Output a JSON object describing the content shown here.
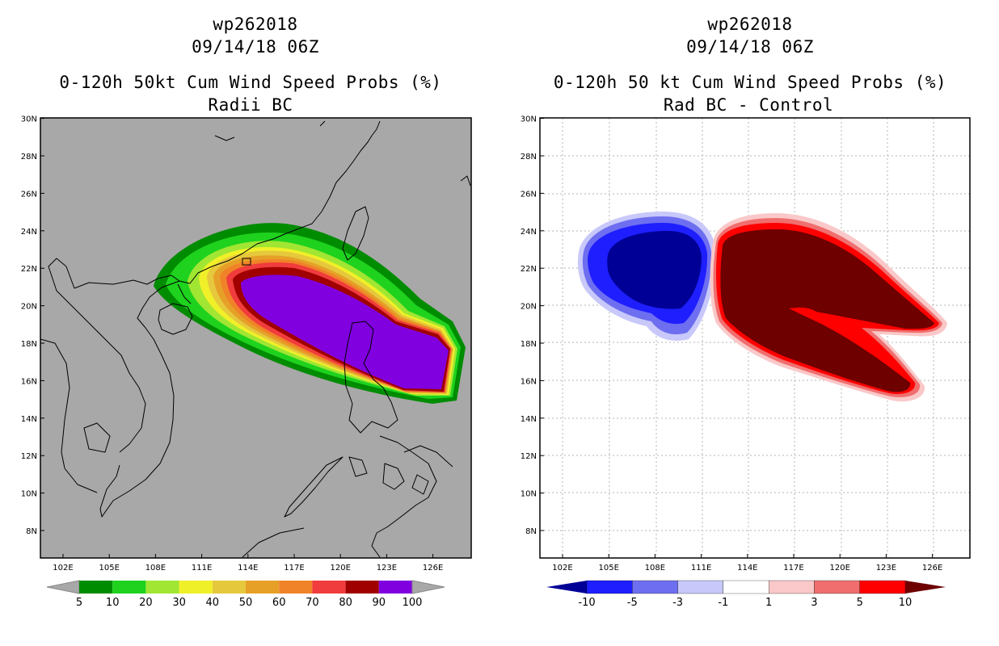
{
  "left_panel": {
    "storm_id": "wp262018",
    "datetime": "09/14/18 06Z",
    "title": "0-120h 50kt Cum Wind Speed Probs (%)",
    "subtitle": "Radii BC",
    "background_color": "#a8a8a8",
    "colorbar": {
      "labels": [
        "5",
        "10",
        "20",
        "30",
        "40",
        "50",
        "60",
        "70",
        "80",
        "90",
        "100"
      ],
      "colors": [
        "#008c00",
        "#1ed21e",
        "#a0e632",
        "#f0f028",
        "#e6c83c",
        "#e6a028",
        "#f08228",
        "#f03c3c",
        "#a00000",
        "#8000e0"
      ]
    }
  },
  "right_panel": {
    "storm_id": "wp262018",
    "datetime": "09/14/18 06Z",
    "title": "0-120h 50 kt Cum Wind Speed Probs (%)",
    "subtitle": "Rad BC - Control",
    "background_color": "#ffffff",
    "colorbar": {
      "labels": [
        "-10",
        "-5",
        "-3",
        "-1",
        "1",
        "3",
        "5",
        "10"
      ],
      "colors": [
        "#000096",
        "#1e1eff",
        "#6e6ef0",
        "#c8c8fa",
        "#ffffff",
        "#fac8c8",
        "#f06e6e",
        "#ff0000",
        "#6e0000"
      ]
    }
  },
  "map_axes": {
    "lon_labels": [
      "102E",
      "105E",
      "108E",
      "111E",
      "114E",
      "117E",
      "120E",
      "123E",
      "126E"
    ],
    "lat_labels": [
      "8N",
      "10N",
      "12N",
      "14N",
      "16N",
      "18N",
      "20N",
      "22N",
      "24N",
      "26N",
      "28N",
      "30N"
    ]
  }
}
